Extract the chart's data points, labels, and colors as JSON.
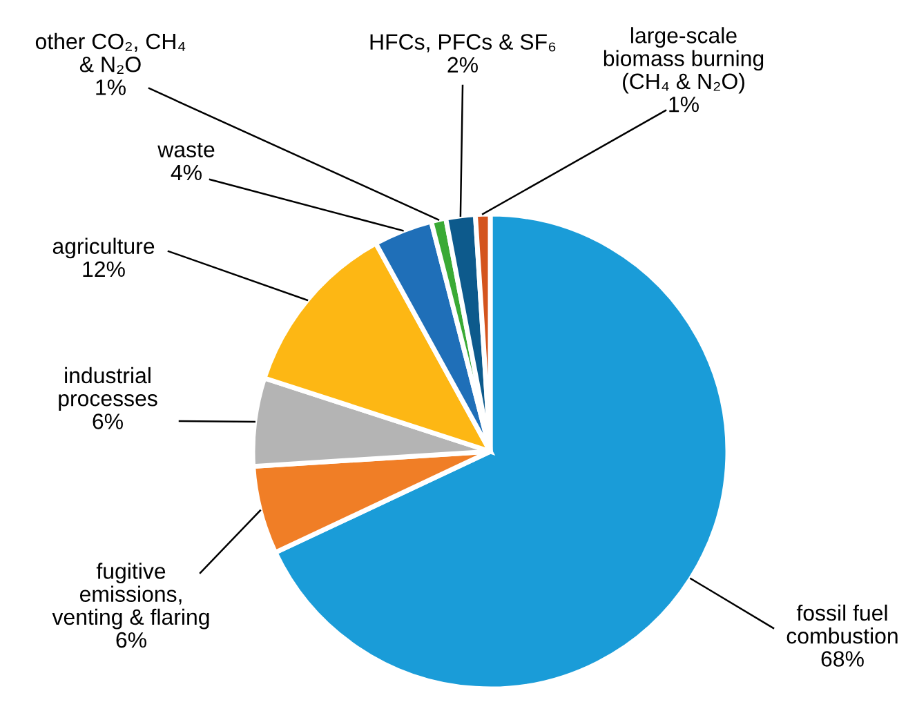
{
  "chart_data": {
    "type": "pie",
    "categories": [
      "fossil fuel\ncombustion",
      "fugitive\nemissions,\nventing & flaring",
      "industrial\nprocesses",
      "agriculture",
      "waste",
      "other CO₂, CH₄\n& N₂O",
      "HFCs, PFCs & SF₆",
      "large-scale\nbiomass burning\n(CH₄ & N₂O)"
    ],
    "values": [
      68,
      6,
      6,
      12,
      4,
      1,
      2,
      1
    ],
    "value_labels": [
      "68%",
      "6%",
      "6%",
      "12%",
      "4%",
      "1%",
      "2%",
      "1%"
    ],
    "colors": [
      "#1a9cd8",
      "#f07e26",
      "#b4b4b4",
      "#fdb714",
      "#1f6fb8",
      "#3aaa35",
      "#0d5a8c",
      "#d4541e"
    ]
  }
}
